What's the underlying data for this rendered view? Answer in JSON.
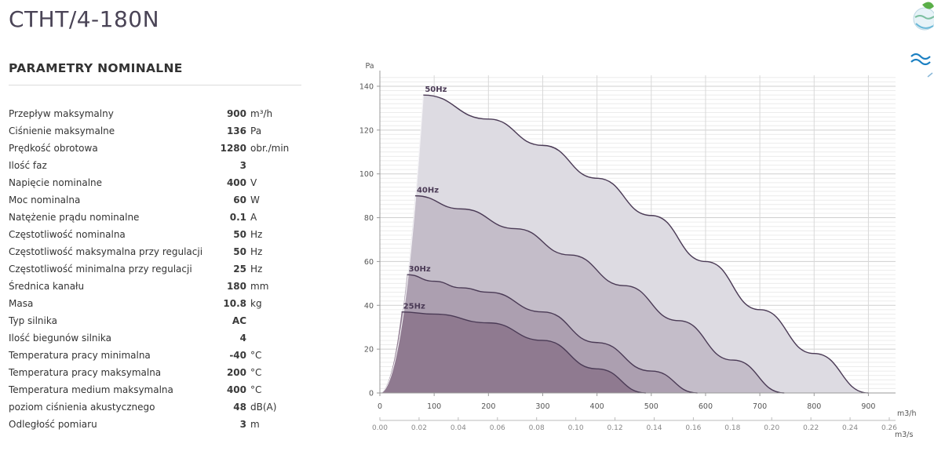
{
  "product": {
    "title": "CTHT/4-180N"
  },
  "section": {
    "title": "PARAMETRY NOMINALNE"
  },
  "params": [
    {
      "label": "Przepływ maksymalny",
      "value": "900",
      "unit": "m³/h"
    },
    {
      "label": "Ciśnienie maksymalne",
      "value": "136",
      "unit": "Pa"
    },
    {
      "label": "Prędkość obrotowa",
      "value": "1280",
      "unit": "obr./min"
    },
    {
      "label": "Ilość faz",
      "value": "3",
      "unit": ""
    },
    {
      "label": "Napięcie nominalne",
      "value": "400",
      "unit": "V"
    },
    {
      "label": "Moc nominalna",
      "value": "60",
      "unit": "W"
    },
    {
      "label": "Natężenie prądu nominalne",
      "value": "0.1",
      "unit": "A"
    },
    {
      "label": "Częstotliwość nominalna",
      "value": "50",
      "unit": "Hz"
    },
    {
      "label": "Częstotliwość maksymalna przy regulacji",
      "value": "50",
      "unit": "Hz"
    },
    {
      "label": "Częstotliwość minimalna przy regulacji",
      "value": "25",
      "unit": "Hz"
    },
    {
      "label": "Średnica kanału",
      "value": "180",
      "unit": "mm"
    },
    {
      "label": "Masa",
      "value": "10.8",
      "unit": "kg"
    },
    {
      "label": "Typ silnika",
      "value": "AC",
      "unit": ""
    },
    {
      "label": "Ilość biegunów silnika",
      "value": "4",
      "unit": ""
    },
    {
      "label": "Temperatura pracy minimalna",
      "value": "-40",
      "unit": "°C"
    },
    {
      "label": "Temperatura pracy maksymalna",
      "value": "200",
      "unit": "°C"
    },
    {
      "label": "Temperatura medium maksymalna",
      "value": "400",
      "unit": "°C"
    },
    {
      "label": "poziom ciśnienia akustycznego",
      "value": "48",
      "unit": "dB(A)"
    },
    {
      "label": "Odległość pomiaru",
      "value": "3",
      "unit": "m"
    }
  ],
  "chart_data": {
    "type": "area",
    "ylabel": "Pa",
    "xlabel": "m3/h",
    "x2label": "m3/s",
    "xlim": [
      0,
      950
    ],
    "ylim": [
      0,
      145
    ],
    "x_ticks": [
      0,
      100,
      200,
      300,
      400,
      500,
      600,
      700,
      800,
      900
    ],
    "y_ticks": [
      0,
      20,
      40,
      60,
      80,
      100,
      120,
      140
    ],
    "x2_ticks": [
      "0.00",
      "0.02",
      "0.04",
      "0.06",
      "0.08",
      "0.10",
      "0.12",
      "0.14",
      "0.16",
      "0.18",
      "0.20",
      "0.22",
      "0.24",
      "0.26"
    ],
    "x2_max": 0.26,
    "grid": true,
    "colors": {
      "50Hz": "#dddbe2",
      "40Hz": "#c4bdc9",
      "30Hz": "#ac9fb0",
      "25Hz": "#8f7a90",
      "curve": "#4a3a55",
      "boundary": "#f4f3f6"
    },
    "series": [
      {
        "name": "50Hz",
        "x": [
          80,
          200,
          300,
          400,
          500,
          600,
          700,
          800,
          900
        ],
        "y": [
          136,
          125,
          113,
          98,
          81,
          60,
          38,
          18,
          0
        ]
      },
      {
        "name": "40Hz",
        "x": [
          65,
          150,
          250,
          350,
          450,
          550,
          650,
          745
        ],
        "y": [
          90,
          84,
          75,
          63,
          49,
          33,
          15,
          0
        ]
      },
      {
        "name": "30Hz",
        "x": [
          50,
          100,
          150,
          200,
          300,
          400,
          500,
          585
        ],
        "y": [
          54,
          51,
          48,
          46,
          37,
          23,
          10,
          0
        ]
      },
      {
        "name": "25Hz",
        "x": [
          40,
          100,
          200,
          300,
          400,
          490
        ],
        "y": [
          37,
          36,
          32,
          24,
          11,
          0
        ]
      }
    ]
  }
}
